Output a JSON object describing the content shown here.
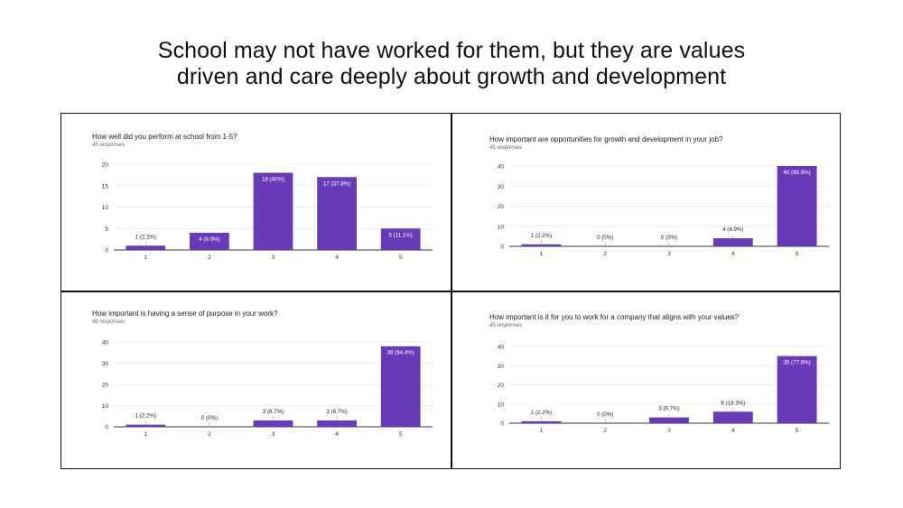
{
  "headline": {
    "line1": "School may not have worked for them, but they are values",
    "line2": "driven and care deeply about growth and development"
  },
  "colors": {
    "bar": "#673ab7",
    "grid": "#e0e0e0",
    "axis": "#333333"
  },
  "chart_data": [
    {
      "type": "bar",
      "title": "How well did you perform at school from 1-5?",
      "responses": "45 responses",
      "categories": [
        "1",
        "2",
        "3",
        "4",
        "5"
      ],
      "values": [
        1,
        4,
        18,
        17,
        5
      ],
      "labels": [
        "1 (2.2%)",
        "4 (8.9%)",
        "18 (40%)",
        "17 (37.8%)",
        "5 (11.1%)"
      ],
      "yticks": [
        "0",
        "5",
        "10",
        "15",
        "20"
      ],
      "ylim": [
        0,
        20
      ]
    },
    {
      "type": "bar",
      "title": "How important are opportunities for growth and development in your job?",
      "responses": "45 responses",
      "categories": [
        "1",
        "2",
        "3",
        "4",
        "5"
      ],
      "values": [
        1,
        0,
        0,
        4,
        40
      ],
      "labels": [
        "1 (2.2%)",
        "0 (0%)",
        "0 (0%)",
        "4 (8.9%)",
        "40 (88.9%)"
      ],
      "yticks": [
        "0",
        "10",
        "20",
        "30",
        "40"
      ],
      "ylim": [
        0,
        40
      ]
    },
    {
      "type": "bar",
      "title": "How important is having a sense of purpose in your work?",
      "responses": "45 responses",
      "categories": [
        "1",
        "2",
        "3",
        "4",
        "5"
      ],
      "values": [
        1,
        0,
        3,
        3,
        38
      ],
      "labels": [
        "1 (2.2%)",
        "0 (0%)",
        "3 (6.7%)",
        "3 (6.7%)",
        "38 (84.4%)"
      ],
      "yticks": [
        "0",
        "10",
        "20",
        "30",
        "40"
      ],
      "ylim": [
        0,
        40
      ]
    },
    {
      "type": "bar",
      "title": "How important is it for you to work for a company that aligns with your values?",
      "responses": "45 responses",
      "categories": [
        "1",
        "2",
        "3",
        "4",
        "5"
      ],
      "values": [
        1,
        0,
        3,
        6,
        35
      ],
      "labels": [
        "1 (2.2%)",
        "0 (0%)",
        "3 (6.7%)",
        "6 (13.3%)",
        "35 (77.8%)"
      ],
      "yticks": [
        "0",
        "10",
        "20",
        "30",
        "40"
      ],
      "ylim": [
        0,
        40
      ]
    }
  ]
}
